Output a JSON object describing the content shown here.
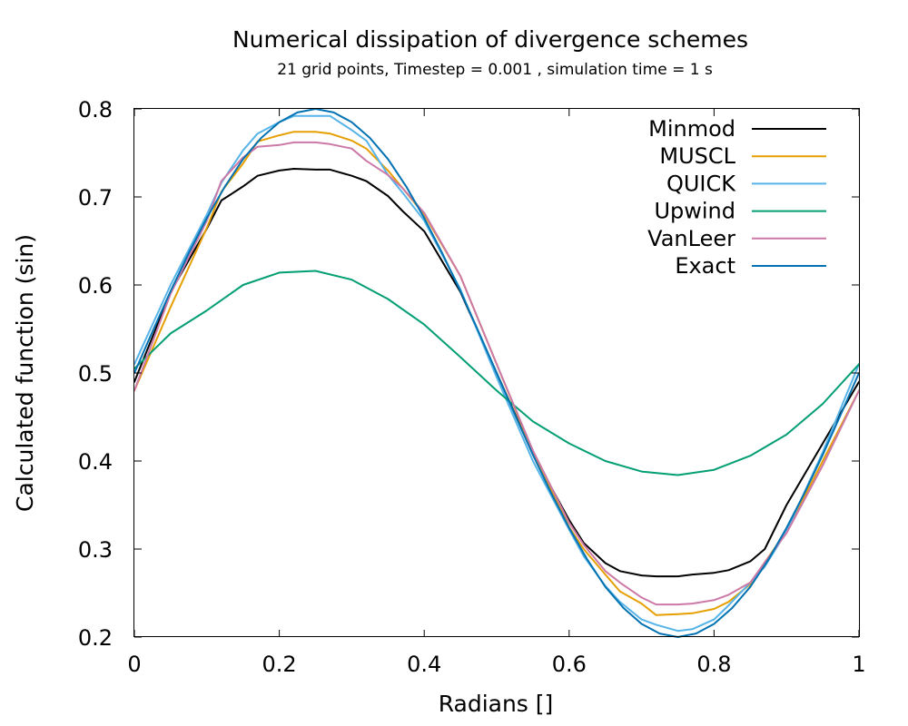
{
  "chart_data": {
    "type": "line",
    "title": "Numerical dissipation of divergence schemes",
    "subtitle": "21 grid points, Timestep = 0.001 , simulation time = 1 s",
    "xlabel": "Radians []",
    "ylabel": "Calculated function (sin)",
    "xlim": [
      0,
      1
    ],
    "ylim": [
      0.2,
      0.8
    ],
    "xticks": [
      0,
      0.2,
      0.4,
      0.6,
      0.8,
      1
    ],
    "xtick_labels": [
      "0",
      "0.2",
      "0.4",
      "0.6",
      "0.8",
      "1"
    ],
    "yticks": [
      0.2,
      0.3,
      0.4,
      0.5,
      0.6,
      0.7,
      0.8
    ],
    "ytick_labels": [
      "0.2",
      "0.3",
      "0.4",
      "0.5",
      "0.6",
      "0.7",
      "0.8"
    ],
    "grid": false,
    "legend_position": "top-right",
    "series": [
      {
        "name": "Minmod",
        "color": "#000000",
        "x": [
          0,
          0.05,
          0.1,
          0.12,
          0.15,
          0.17,
          0.2,
          0.22,
          0.25,
          0.27,
          0.3,
          0.32,
          0.35,
          0.37,
          0.4,
          0.45,
          0.5,
          0.55,
          0.6,
          0.62,
          0.65,
          0.67,
          0.7,
          0.72,
          0.75,
          0.77,
          0.8,
          0.82,
          0.85,
          0.87,
          0.9,
          0.95,
          1
        ],
        "y": [
          0.49,
          0.592,
          0.664,
          0.696,
          0.712,
          0.724,
          0.73,
          0.732,
          0.731,
          0.731,
          0.724,
          0.718,
          0.701,
          0.684,
          0.661,
          0.592,
          0.5,
          0.408,
          0.333,
          0.307,
          0.284,
          0.275,
          0.27,
          0.269,
          0.269,
          0.271,
          0.273,
          0.276,
          0.286,
          0.3,
          0.35,
          0.42,
          0.49
        ]
      },
      {
        "name": "MUSCL",
        "color": "#e69f00",
        "x": [
          0,
          0.05,
          0.1,
          0.12,
          0.15,
          0.17,
          0.2,
          0.22,
          0.25,
          0.27,
          0.3,
          0.32,
          0.35,
          0.37,
          0.4,
          0.45,
          0.5,
          0.55,
          0.6,
          0.62,
          0.65,
          0.67,
          0.7,
          0.72,
          0.75,
          0.77,
          0.8,
          0.82,
          0.85,
          0.87,
          0.9,
          0.95,
          1
        ],
        "y": [
          0.48,
          0.575,
          0.665,
          0.706,
          0.738,
          0.763,
          0.77,
          0.774,
          0.774,
          0.772,
          0.764,
          0.755,
          0.73,
          0.71,
          0.68,
          0.61,
          0.51,
          0.41,
          0.325,
          0.3,
          0.271,
          0.252,
          0.238,
          0.225,
          0.226,
          0.227,
          0.232,
          0.24,
          0.26,
          0.285,
          0.32,
          0.4,
          0.48
        ]
      },
      {
        "name": "QUICK",
        "color": "#56b4e9",
        "x": [
          0,
          0.05,
          0.1,
          0.12,
          0.15,
          0.17,
          0.2,
          0.22,
          0.25,
          0.27,
          0.3,
          0.32,
          0.35,
          0.37,
          0.4,
          0.45,
          0.5,
          0.55,
          0.6,
          0.62,
          0.65,
          0.67,
          0.7,
          0.72,
          0.75,
          0.77,
          0.8,
          0.82,
          0.85,
          0.87,
          0.9,
          0.95,
          1
        ],
        "y": [
          0.51,
          0.6,
          0.68,
          0.716,
          0.753,
          0.772,
          0.785,
          0.792,
          0.792,
          0.792,
          0.776,
          0.764,
          0.725,
          0.705,
          0.673,
          0.595,
          0.495,
          0.4,
          0.322,
          0.292,
          0.258,
          0.24,
          0.22,
          0.214,
          0.207,
          0.209,
          0.22,
          0.236,
          0.262,
          0.28,
          0.32,
          0.41,
          0.51
        ]
      },
      {
        "name": "Upwind",
        "color": "#009e73",
        "x": [
          0,
          0.05,
          0.1,
          0.15,
          0.2,
          0.25,
          0.3,
          0.35,
          0.4,
          0.45,
          0.5,
          0.55,
          0.6,
          0.65,
          0.7,
          0.75,
          0.8,
          0.85,
          0.9,
          0.95,
          1
        ],
        "y": [
          0.505,
          0.545,
          0.571,
          0.6,
          0.614,
          0.616,
          0.606,
          0.584,
          0.555,
          0.518,
          0.48,
          0.445,
          0.42,
          0.4,
          0.388,
          0.384,
          0.39,
          0.406,
          0.43,
          0.465,
          0.51
        ]
      },
      {
        "name": "VanLeer",
        "color": "#cc79a7",
        "x": [
          0,
          0.05,
          0.1,
          0.12,
          0.15,
          0.17,
          0.2,
          0.22,
          0.25,
          0.27,
          0.3,
          0.32,
          0.35,
          0.37,
          0.4,
          0.45,
          0.5,
          0.55,
          0.6,
          0.62,
          0.65,
          0.67,
          0.7,
          0.72,
          0.75,
          0.77,
          0.8,
          0.82,
          0.85,
          0.87,
          0.9,
          0.95,
          1
        ],
        "y": [
          0.48,
          0.59,
          0.673,
          0.718,
          0.745,
          0.757,
          0.759,
          0.762,
          0.762,
          0.76,
          0.755,
          0.741,
          0.725,
          0.71,
          0.682,
          0.61,
          0.51,
          0.412,
          0.33,
          0.305,
          0.275,
          0.262,
          0.245,
          0.237,
          0.237,
          0.238,
          0.242,
          0.248,
          0.262,
          0.285,
          0.318,
          0.395,
          0.48
        ]
      },
      {
        "name": "Exact",
        "color": "#0072b2",
        "x": [
          0,
          0.025,
          0.05,
          0.075,
          0.1,
          0.125,
          0.15,
          0.175,
          0.2,
          0.225,
          0.25,
          0.275,
          0.3,
          0.325,
          0.35,
          0.375,
          0.4,
          0.425,
          0.45,
          0.475,
          0.5,
          0.525,
          0.55,
          0.575,
          0.6,
          0.625,
          0.65,
          0.675,
          0.7,
          0.725,
          0.75,
          0.775,
          0.8,
          0.825,
          0.85,
          0.875,
          0.9,
          0.925,
          0.95,
          0.975,
          1
        ],
        "y": [
          0.5,
          0.547,
          0.593,
          0.636,
          0.676,
          0.712,
          0.743,
          0.767,
          0.785,
          0.796,
          0.8,
          0.796,
          0.785,
          0.767,
          0.743,
          0.712,
          0.676,
          0.636,
          0.593,
          0.547,
          0.5,
          0.453,
          0.407,
          0.364,
          0.324,
          0.288,
          0.257,
          0.233,
          0.215,
          0.204,
          0.2,
          0.204,
          0.215,
          0.233,
          0.257,
          0.288,
          0.324,
          0.364,
          0.407,
          0.453,
          0.5
        ]
      }
    ]
  }
}
